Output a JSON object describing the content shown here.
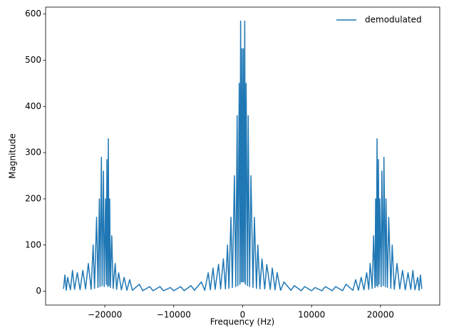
{
  "chart_data": {
    "type": "line",
    "xlabel": "Frequency (Hz)",
    "ylabel": "Magnitude",
    "xlim": [
      -28600,
      28600
    ],
    "ylim": [
      -30,
      615
    ],
    "xticks": [
      {
        "value": -20000,
        "label": "−20000"
      },
      {
        "value": -10000,
        "label": "−10000"
      },
      0,
      10000,
      20000
    ],
    "yticks": [
      0,
      100,
      200,
      300,
      400,
      500,
      600
    ],
    "legend": "upper right",
    "x": [
      -26000,
      -25800,
      -25600,
      -25400,
      -25000,
      -24700,
      -24400,
      -24000,
      -23600,
      -23200,
      -22800,
      -22400,
      -22000,
      -21700,
      -21500,
      -21200,
      -21000,
      -20800,
      -20700,
      -20500,
      -20400,
      -20200,
      -20100,
      -19900,
      -19800,
      -19700,
      -19600,
      -19500,
      -19400,
      -19300,
      -19200,
      -19000,
      -18800,
      -18500,
      -18300,
      -18000,
      -17600,
      -17200,
      -16800,
      -16400,
      -16000,
      -15000,
      -14500,
      -13500,
      -13000,
      -12000,
      -11500,
      -10500,
      -10000,
      -9000,
      -8500,
      -7500,
      -7000,
      -6000,
      -5500,
      -5000,
      -4700,
      -4300,
      -4000,
      -3500,
      -3200,
      -2800,
      -2500,
      -2200,
      -2000,
      -1700,
      -1500,
      -1200,
      -1000,
      -800,
      -700,
      -500,
      -400,
      -300,
      -200,
      -100,
      0,
      100,
      200,
      300,
      400,
      500,
      700,
      800,
      1000,
      1200,
      1500,
      1700,
      2000,
      2200,
      2500,
      2800,
      3200,
      3500,
      4000,
      4300,
      4700,
      5000,
      5500,
      6000,
      7000,
      7500,
      8500,
      9000,
      10000,
      10500,
      11500,
      12000,
      13000,
      13500,
      14500,
      15000,
      16000,
      16400,
      16800,
      17200,
      17600,
      18000,
      18300,
      18500,
      18800,
      19000,
      19200,
      19300,
      19400,
      19500,
      19600,
      19700,
      19800,
      19900,
      20100,
      20200,
      20400,
      20500,
      20700,
      20800,
      21000,
      21200,
      21500,
      21700,
      22000,
      22400,
      22800,
      23200,
      23600,
      24000,
      24400,
      24700,
      25000,
      25400,
      25600,
      25800,
      26000
    ],
    "series": [
      {
        "name": "demodulated",
        "color": "#1f77b4",
        "values": [
          5,
          35,
          2,
          30,
          3,
          45,
          4,
          40,
          3,
          45,
          5,
          60,
          4,
          100,
          6,
          160,
          8,
          200,
          10,
          290,
          12,
          260,
          10,
          200,
          15,
          285,
          10,
          330,
          12,
          200,
          8,
          120,
          6,
          60,
          4,
          40,
          3,
          30,
          2,
          25,
          2,
          15,
          1,
          10,
          1,
          10,
          1,
          8,
          1,
          10,
          1,
          12,
          2,
          20,
          2,
          40,
          3,
          50,
          4,
          58,
          5,
          70,
          5,
          100,
          6,
          160,
          8,
          250,
          10,
          380,
          12,
          450,
          15,
          585,
          20,
          525,
          20,
          525,
          20,
          585,
          15,
          450,
          12,
          380,
          10,
          250,
          8,
          160,
          6,
          100,
          5,
          70,
          5,
          58,
          4,
          50,
          3,
          40,
          2,
          20,
          2,
          12,
          1,
          10,
          1,
          8,
          1,
          10,
          1,
          10,
          1,
          15,
          2,
          25,
          2,
          30,
          3,
          40,
          4,
          60,
          6,
          120,
          8,
          200,
          12,
          330,
          10,
          285,
          15,
          200,
          10,
          260,
          12,
          290,
          10,
          200,
          8,
          160,
          6,
          100,
          4,
          60,
          5,
          45,
          3,
          40,
          4,
          45,
          3,
          30,
          2,
          35,
          5
        ]
      }
    ]
  }
}
